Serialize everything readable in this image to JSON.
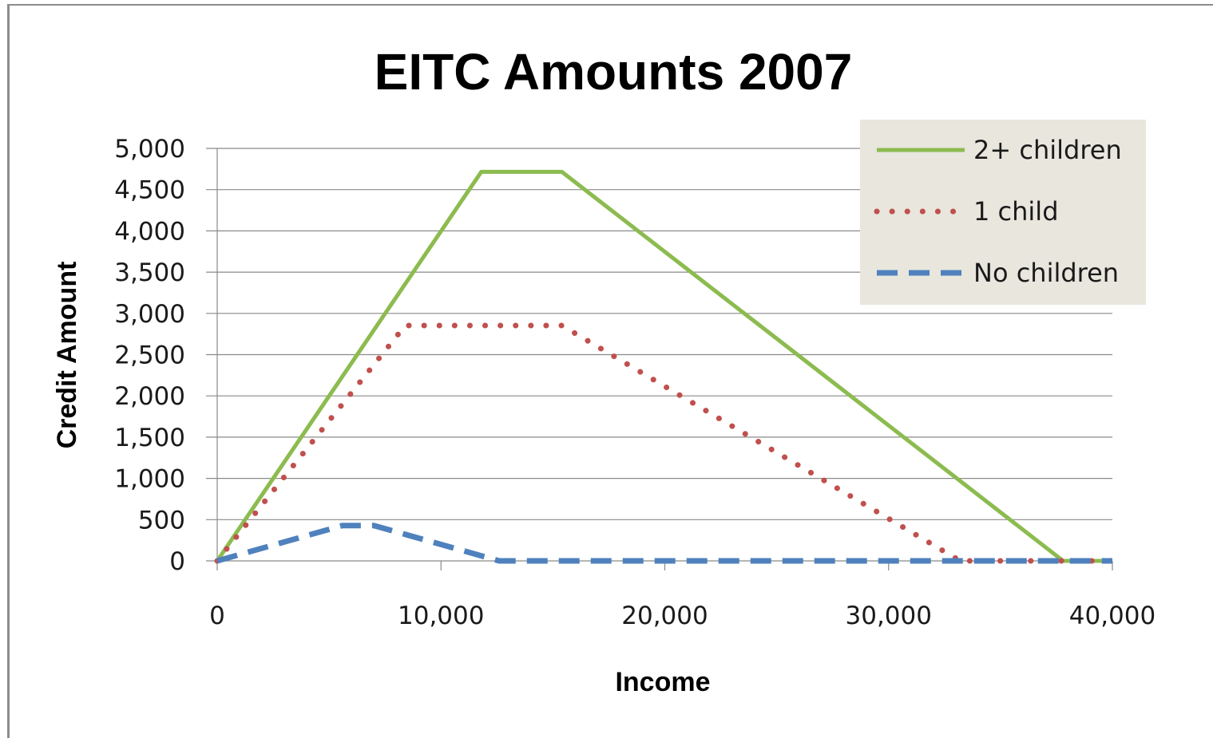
{
  "chart_data": {
    "type": "line",
    "title": "EITC Amounts 2007",
    "xlabel": "Income",
    "ylabel": "Credit Amount",
    "xlim": [
      0,
      40000
    ],
    "ylim": [
      0,
      5000
    ],
    "x_ticks": [
      "0",
      "10,000",
      "20,000",
      "30,000",
      "40,000"
    ],
    "y_ticks": [
      "0",
      "500",
      "1,000",
      "1,500",
      "2,000",
      "2,500",
      "3,000",
      "3,500",
      "4,000",
      "4,500",
      "5,000"
    ],
    "grid": true,
    "legend_position": "top-right",
    "series": [
      {
        "name": "2+ children",
        "color": "#8cbb4f",
        "style": "solid",
        "points": [
          [
            0,
            0
          ],
          [
            11800,
            4716
          ],
          [
            15400,
            4716
          ],
          [
            37800,
            0
          ],
          [
            40000,
            0
          ]
        ]
      },
      {
        "name": "1 child",
        "color": "#c0504d",
        "style": "dotted",
        "points": [
          [
            0,
            0
          ],
          [
            8400,
            2853
          ],
          [
            15400,
            2853
          ],
          [
            33200,
            0
          ],
          [
            40000,
            0
          ]
        ]
      },
      {
        "name": "No children",
        "color": "#4f81bd",
        "style": "dashed",
        "points": [
          [
            0,
            0
          ],
          [
            5600,
            428
          ],
          [
            7000,
            428
          ],
          [
            12600,
            0
          ],
          [
            40000,
            0
          ]
        ]
      }
    ]
  }
}
